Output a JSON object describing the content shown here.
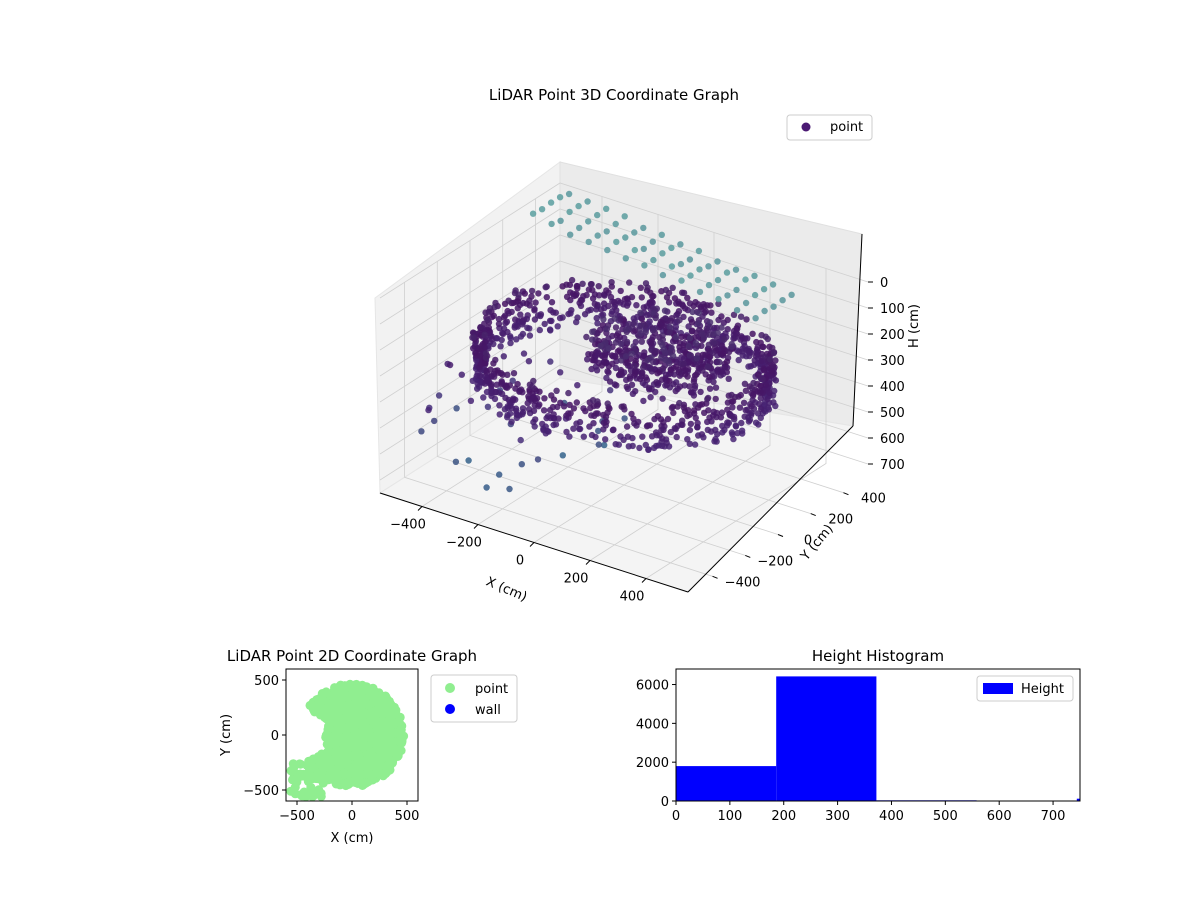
{
  "chart_data": [
    {
      "type": "scatter3d",
      "title": "LiDAR Point 3D Coordinate Graph",
      "xlabel": "X (cm)",
      "ylabel": "Y (cm)",
      "zlabel": "H (cm)",
      "xlim": [
        -550,
        550
      ],
      "ylim": [
        -550,
        550
      ],
      "zlim": [
        750,
        0
      ],
      "xticks": [
        "−400",
        "−200",
        "0",
        "200",
        "400"
      ],
      "yticks": [
        "−400",
        "−200",
        "0",
        "200",
        "400"
      ],
      "zticks": [
        "0",
        "100",
        "200",
        "300",
        "400",
        "500",
        "600",
        "700"
      ],
      "grid": true,
      "legend": {
        "position": "top-right",
        "entries": [
          "point"
        ]
      },
      "colormap": "viridis",
      "series": [
        {
          "name": "point",
          "color": "#4b1a73"
        }
      ],
      "structures": [
        {
          "kind": "ring",
          "center": [
            0,
            0
          ],
          "radius": 450,
          "h_range": [
            200,
            380
          ]
        },
        {
          "kind": "inner-cluster",
          "center": [
            80,
            80
          ],
          "radius": 220,
          "h_range": [
            200,
            300
          ]
        },
        {
          "kind": "ceiling-grid",
          "h": 0,
          "x_range": [
            -500,
            450
          ],
          "y_range": [
            -200,
            550
          ]
        },
        {
          "kind": "scattered",
          "h_range": [
            300,
            750
          ]
        }
      ]
    },
    {
      "type": "scatter",
      "title": "LiDAR Point 2D Coordinate Graph",
      "xlabel": "X (cm)",
      "ylabel": "Y (cm)",
      "xlim": [
        -600,
        600
      ],
      "ylim": [
        -600,
        600
      ],
      "xticks": [
        "−500",
        "0",
        "500"
      ],
      "yticks": [
        "−500",
        "0",
        "500"
      ],
      "legend": {
        "position": "outside-right",
        "entries": [
          "point",
          "wall"
        ]
      },
      "series": [
        {
          "name": "point",
          "color": "#90ee90"
        },
        {
          "name": "wall",
          "color": "#0000ff"
        }
      ]
    },
    {
      "type": "bar",
      "title": "Height Histogram",
      "legend": {
        "position": "top-right",
        "entries": [
          "Height"
        ]
      },
      "color": "#0000ff",
      "xlim": [
        0,
        750
      ],
      "ylim": [
        0,
        6800
      ],
      "xticks": [
        "0",
        "100",
        "200",
        "300",
        "400",
        "500",
        "600",
        "700"
      ],
      "yticks": [
        "0",
        "2000",
        "4000",
        "6000"
      ],
      "bins": [
        {
          "start": 0,
          "end": 186,
          "count": 1800
        },
        {
          "start": 186,
          "end": 372,
          "count": 6420
        },
        {
          "start": 372,
          "end": 558,
          "count": 35
        },
        {
          "start": 558,
          "end": 744,
          "count": 25
        },
        {
          "start": 744,
          "end": 750,
          "count": 120
        }
      ]
    }
  ]
}
